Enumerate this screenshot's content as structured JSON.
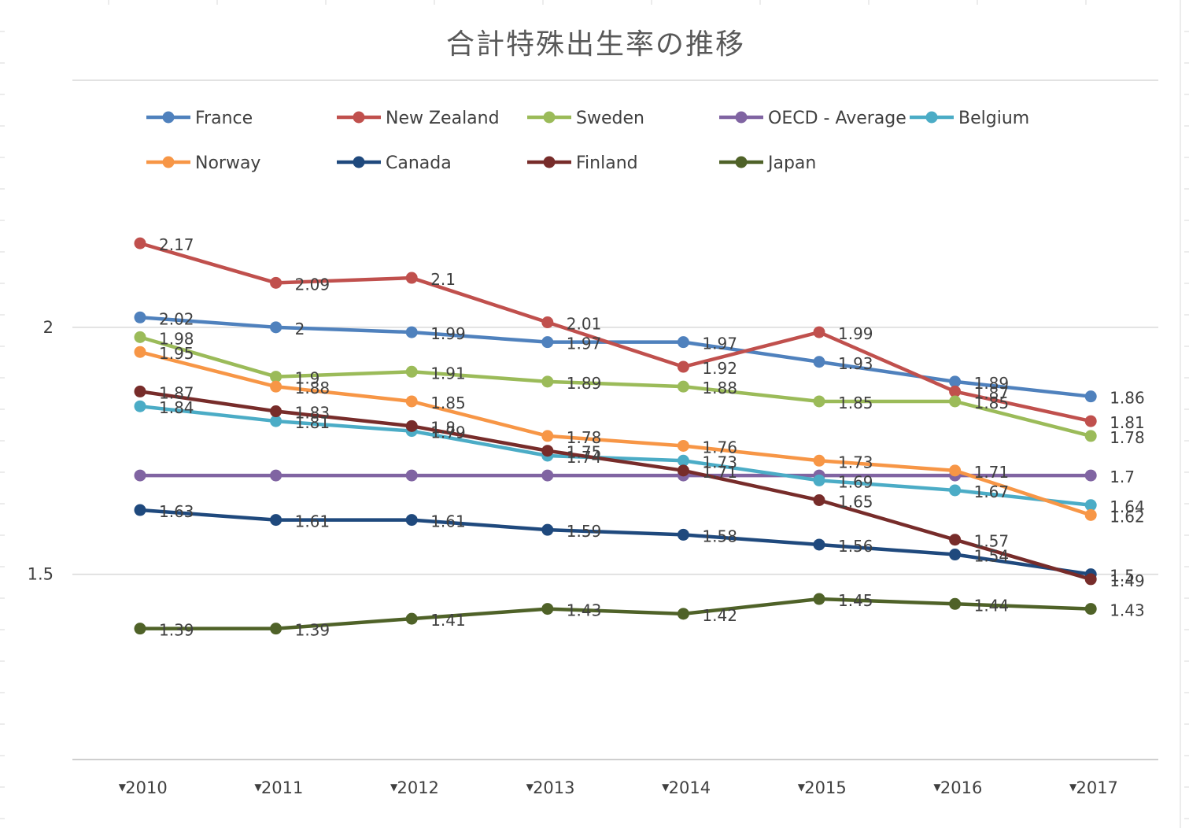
{
  "chart_data": {
    "type": "line",
    "title": "合計特殊出生率の推移",
    "xlabel": "",
    "ylabel": "",
    "categories": [
      "2010",
      "2011",
      "2012",
      "2013",
      "2014",
      "2015",
      "2016",
      "2017"
    ],
    "y_tick_labels": [
      "2",
      "1.5"
    ],
    "y_ticks": [
      2,
      1.5
    ],
    "ylim": [
      1.125,
      2.5
    ],
    "grid": true,
    "legend_position": "top",
    "category_filter_arrow": "▼",
    "series": [
      {
        "name": "France",
        "color": "#4f81bd",
        "values": [
          2.02,
          2,
          1.99,
          1.97,
          1.97,
          1.93,
          1.89,
          1.86
        ]
      },
      {
        "name": "New Zealand",
        "color": "#c0504d",
        "values": [
          2.17,
          2.09,
          2.1,
          2.01,
          1.92,
          1.99,
          1.87,
          1.81
        ]
      },
      {
        "name": "Sweden",
        "color": "#9bbb59",
        "values": [
          1.98,
          1.9,
          1.91,
          1.89,
          1.88,
          1.85,
          1.85,
          1.78
        ]
      },
      {
        "name": "OECD - Average",
        "color": "#8064a2",
        "values": [
          1.7,
          1.7,
          1.7,
          1.7,
          1.7,
          1.7,
          1.7,
          1.7
        ],
        "labels": [
          "",
          "",
          "",
          "",
          "",
          "",
          "",
          "1.7"
        ]
      },
      {
        "name": "Belgium",
        "color": "#4bacc6",
        "values": [
          1.84,
          1.81,
          1.79,
          1.74,
          1.73,
          1.69,
          1.67,
          1.64
        ]
      },
      {
        "name": "Norway",
        "color": "#f79646",
        "values": [
          1.95,
          1.88,
          1.85,
          1.78,
          1.76,
          1.73,
          1.71,
          1.62
        ]
      },
      {
        "name": "Canada",
        "color": "#1f497d",
        "values": [
          1.63,
          1.61,
          1.61,
          1.59,
          1.58,
          1.56,
          1.54,
          1.5
        ]
      },
      {
        "name": "Finland",
        "color": "#772c2a",
        "values": [
          1.87,
          1.83,
          1.8,
          1.75,
          1.71,
          1.65,
          1.57,
          1.49
        ]
      },
      {
        "name": "Japan",
        "color": "#4f6228",
        "values": [
          1.39,
          1.39,
          1.41,
          1.43,
          1.42,
          1.45,
          1.44,
          1.43
        ]
      }
    ]
  }
}
